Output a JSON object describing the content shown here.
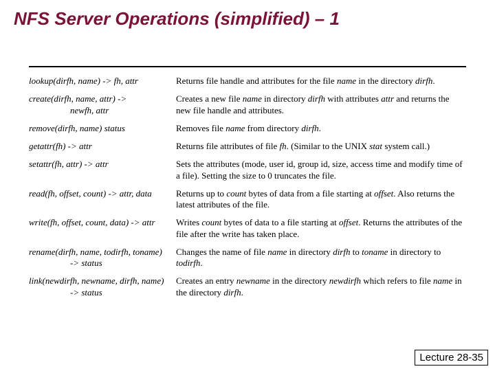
{
  "title_color": "#7a1335",
  "title": "NFS Server Operations (simplified) – 1",
  "footer": "Lecture 28-35",
  "ops": [
    {
      "sig_l1": "lookup(dirfh, name) -> fh, attr",
      "sig_l2": "",
      "desc": "Returns file handle and attributes for the file <i>name</i> in the directory <i>dirfh</i>."
    },
    {
      "sig_l1": "create(dirfh, name, attr) ->",
      "sig_l2": "newfh, attr",
      "desc": "Creates a new file <i>name</i> in directory <i>dirfh</i> with attributes <i>attr</i> and returns the new file handle and attributes."
    },
    {
      "sig_l1": "remove(dirfh, name)  status",
      "sig_l2": "",
      "desc": "Removes file <i>name</i> from directory <i>dirfh</i>."
    },
    {
      "sig_l1": "getattr(fh) -> attr",
      "sig_l2": "",
      "desc": "Returns file attributes of file <i>fh</i>. (Similar to the UNIX <i>stat</i> system call.)"
    },
    {
      "sig_l1": "setattr(fh, attr) -> attr",
      "sig_l2": "",
      "desc": "Sets the attributes (mode, user id, group id, size, access time and modify time of a file). Setting the size to 0 truncates the file."
    },
    {
      "sig_l1": "read(fh, offset, count) -> attr, data",
      "sig_l2": "",
      "desc": "Returns up to <i>count</i> bytes of data from a file starting at <i>offset</i>. Also returns the latest attributes of the file."
    },
    {
      "sig_l1": "write(fh, offset, count, data) -> attr",
      "sig_l2": "",
      "desc": "Writes <i>count</i> bytes of data to a file starting at <i>offset</i>. Returns the attributes of the file after the write has taken place."
    },
    {
      "sig_l1": "rename(dirfh, name, todirfh, toname)",
      "sig_l2": "-> status",
      "desc": "Changes the name of file <i>name</i> in directory <i>dirfh</i> to <i>toname</i> in directory to <i>todirfh</i>."
    },
    {
      "sig_l1": "link(newdirfh, newname, dirfh, name)",
      "sig_l2": "-> status",
      "desc": "Creates an entry <i>newname</i> in the directory <i>newdirfh</i> which refers to file <i>name</i> in the directory <i>dirfh</i>."
    }
  ]
}
